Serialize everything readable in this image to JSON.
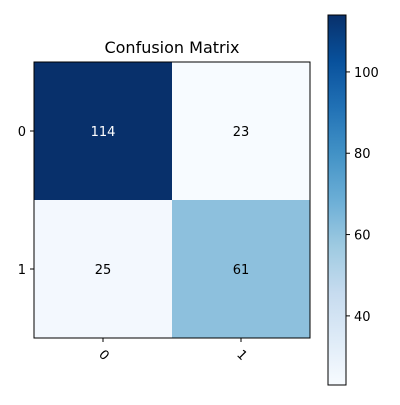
{
  "chart_data": {
    "type": "heatmap",
    "title": "Confusion Matrix",
    "xlabel": "",
    "ylabel": "",
    "row_labels": [
      "0",
      "1"
    ],
    "col_labels": [
      "0",
      "1"
    ],
    "values": [
      [
        114,
        23
      ],
      [
        25,
        61
      ]
    ],
    "value_range": [
      23,
      114
    ],
    "colormap": "Blues",
    "colorbar_ticks": [
      40,
      60,
      80,
      100
    ],
    "text_colors": {
      "dark_cell": "#ffffff",
      "light_cell": "#000000"
    },
    "grid": false
  }
}
